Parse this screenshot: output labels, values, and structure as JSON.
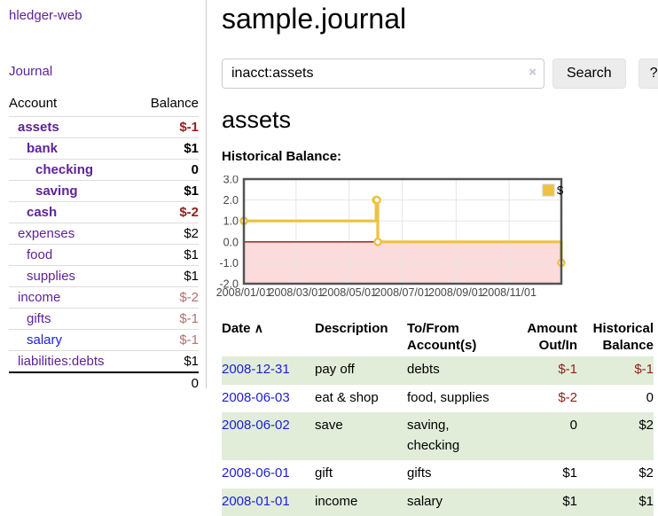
{
  "sidebar": {
    "app_title": "hledger-web",
    "nav_journal": "Journal",
    "accounts_table": {
      "headers": {
        "account": "Account",
        "balance": "Balance"
      },
      "rows": [
        {
          "name": "assets",
          "depth": 1,
          "bold": true,
          "balance": "$-1",
          "balance_color": "negative-strong"
        },
        {
          "name": "bank",
          "depth": 2,
          "bold": true,
          "balance": "$1",
          "balance_color": "normal"
        },
        {
          "name": "checking",
          "depth": 3,
          "bold": true,
          "balance": "0",
          "balance_color": "normal"
        },
        {
          "name": "saving",
          "depth": 3,
          "bold": true,
          "balance": "$1",
          "balance_color": "normal"
        },
        {
          "name": "cash",
          "depth": 2,
          "bold": true,
          "balance": "$-2",
          "balance_color": "negative-strong"
        },
        {
          "name": "expenses",
          "depth": 1,
          "bold": false,
          "balance": "$2",
          "balance_color": "normal"
        },
        {
          "name": "food",
          "depth": 2,
          "bold": false,
          "balance": "$1",
          "balance_color": "normal"
        },
        {
          "name": "supplies",
          "depth": 2,
          "bold": false,
          "balance": "$1",
          "balance_color": "normal"
        },
        {
          "name": "income",
          "depth": 1,
          "bold": false,
          "balance": "$-2",
          "balance_color": "negative-muted"
        },
        {
          "name": "gifts",
          "depth": 2,
          "bold": false,
          "balance": "$-1",
          "balance_color": "negative-muted"
        },
        {
          "name": "salary",
          "depth": 2,
          "bold": false,
          "balance": "$-1",
          "balance_color": "negative-muted",
          "link_color": "blue"
        },
        {
          "name": "liabilities:debts",
          "depth": 1,
          "bold": false,
          "balance": "$1",
          "balance_color": "normal"
        }
      ],
      "total": "0"
    }
  },
  "header": {
    "title": "sample.journal"
  },
  "search": {
    "value": "inacct:assets",
    "clear_icon": "×",
    "search_button": "Search",
    "help_button": "?"
  },
  "account_view": {
    "title": "assets",
    "chart_title": "Historical Balance:"
  },
  "chart_data": {
    "type": "line",
    "style": "step",
    "title": "Historical Balance:",
    "series": [
      {
        "name": "$",
        "color": "#edc240",
        "points": [
          [
            "2008-01-01",
            1
          ],
          [
            "2008-06-01",
            2
          ],
          [
            "2008-06-02",
            2
          ],
          [
            "2008-06-03",
            0
          ],
          [
            "2008-12-31",
            -1
          ]
        ]
      }
    ],
    "xlim": [
      "2008-01-01",
      "2008-12-31"
    ],
    "ylim": [
      -2,
      3
    ],
    "x_ticks": [
      "2008/01/01",
      "2008/03/01",
      "2008/05/01",
      "2008/07/01",
      "2008/09/01",
      "2008/11/01"
    ],
    "y_ticks": [
      {
        "value": 3,
        "label": "3.0"
      },
      {
        "value": 2,
        "label": "2.0"
      },
      {
        "value": 1,
        "label": "1.0"
      },
      {
        "value": 0,
        "label": "0.0"
      },
      {
        "value": -1,
        "label": "-1.0"
      },
      {
        "value": -2,
        "label": "-2.0"
      }
    ],
    "grid": true,
    "legend": {
      "label": "$",
      "position": "top-right"
    },
    "negative_zone": {
      "from": -2,
      "to": 0,
      "color": "#fbdbdb"
    },
    "zero_line_color": "#9c1010"
  },
  "register_table": {
    "headers": [
      "Date",
      "Description",
      "To/From Account(s)",
      "Amount Out/In",
      "Historical Balance"
    ],
    "sort_icon": "∧",
    "rows": [
      {
        "date": "2008-12-31",
        "description": "pay off",
        "accounts": "debts",
        "amount": "$-1",
        "amount_negative": true,
        "balance": "$-1",
        "balance_negative": true
      },
      {
        "date": "2008-06-03",
        "description": "eat & shop",
        "accounts": "food, supplies",
        "amount": "$-2",
        "amount_negative": true,
        "balance": "0",
        "balance_negative": false
      },
      {
        "date": "2008-06-02",
        "description": "save",
        "accounts": "saving, checking",
        "amount": "0",
        "amount_negative": false,
        "balance": "$2",
        "balance_negative": false
      },
      {
        "date": "2008-06-01",
        "description": "gift",
        "accounts": "gifts",
        "amount": "$1",
        "amount_negative": false,
        "balance": "$2",
        "balance_negative": false
      },
      {
        "date": "2008-01-01",
        "description": "income",
        "accounts": "salary",
        "amount": "$1",
        "amount_negative": false,
        "balance": "$1",
        "balance_negative": false
      }
    ]
  },
  "colors": {
    "link_purple": "#5e2399",
    "link_blue": "#1d1dd8",
    "negative_strong": "#8f221c",
    "negative_muted": "#b37070",
    "row_green": "#e1edd9",
    "chart_gold": "#edc240",
    "negative_zone_pink": "#fbdbdb",
    "zero_line_red": "#9c1010"
  }
}
